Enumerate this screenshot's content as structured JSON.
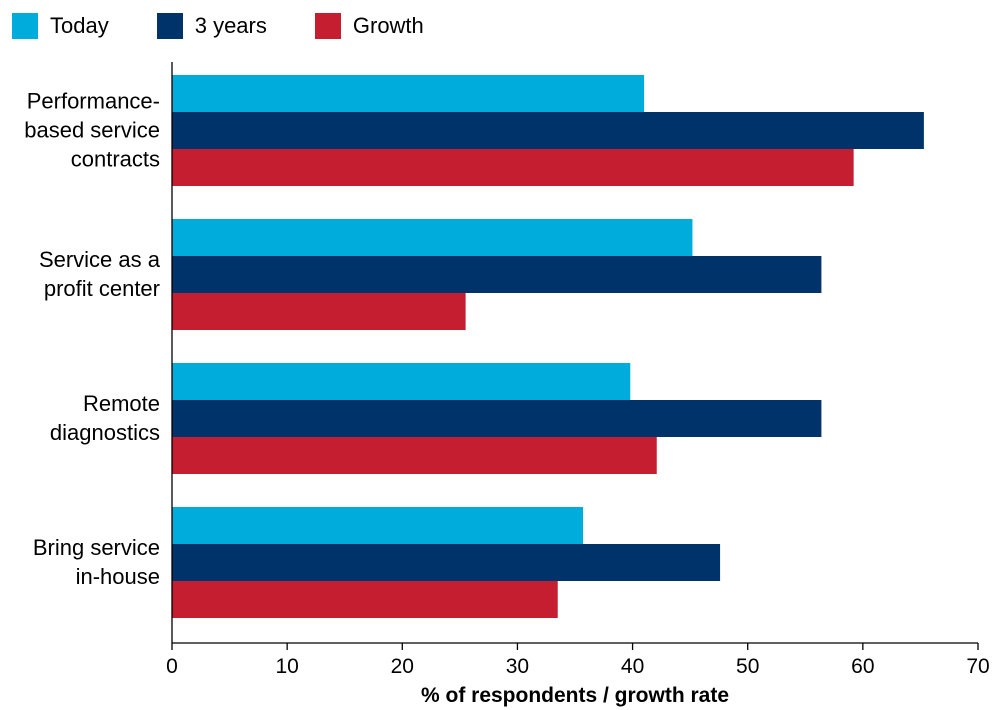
{
  "chart_data": {
    "type": "bar",
    "orientation": "horizontal",
    "categories": [
      [
        "Performance-",
        "based service",
        "contracts"
      ],
      [
        "Service as a",
        "profit center"
      ],
      [
        "Remote",
        "diagnostics"
      ],
      [
        "Bring service",
        "in-house"
      ]
    ],
    "series": [
      {
        "name": "Today",
        "color": "#00acdc",
        "values": [
          41,
          45.2,
          39.8,
          35.7
        ]
      },
      {
        "name": "3 years",
        "color": "#00336a",
        "values": [
          65.3,
          56.4,
          56.4,
          47.6
        ]
      },
      {
        "name": "Growth",
        "color": "#c41e30",
        "values": [
          59.2,
          25.5,
          42.1,
          33.5
        ]
      }
    ],
    "xlim": [
      0,
      70
    ],
    "xticks": [
      0,
      10,
      20,
      30,
      40,
      50,
      60,
      70
    ],
    "xlabel": "% of respondents / growth rate",
    "ylabel": "",
    "title": "",
    "grid": false,
    "legend_position": "top-left"
  }
}
